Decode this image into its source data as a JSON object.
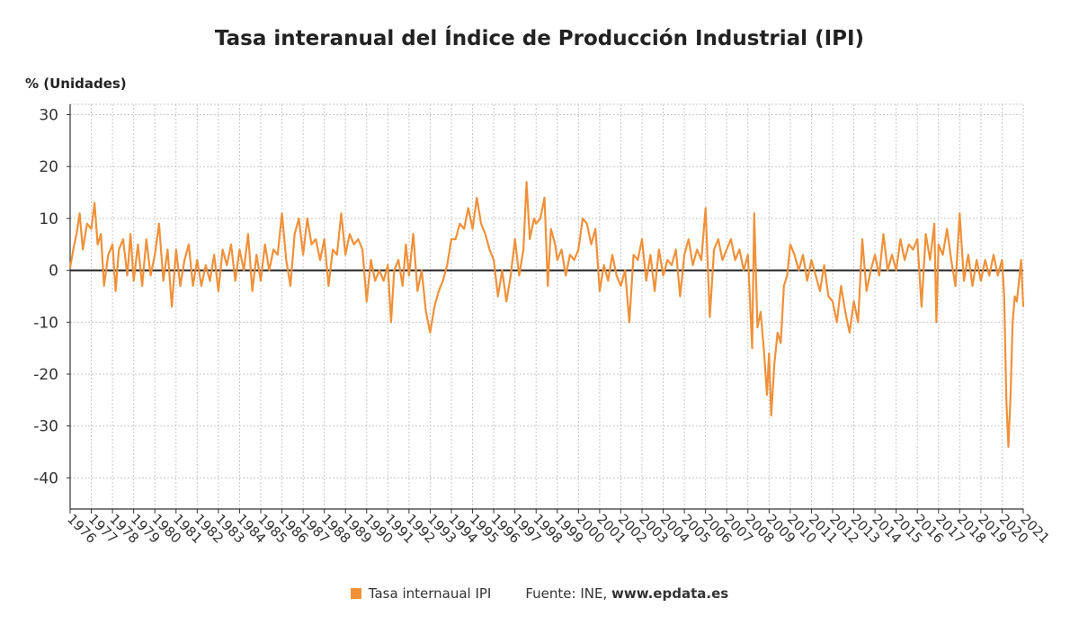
{
  "chart_data": {
    "type": "line",
    "title": "Tasa interanual del Índice de Producción Industrial (IPI)",
    "ylabel": "% (Unidades)",
    "xlabel": "",
    "ylim": [
      -46,
      32
    ],
    "yticks": [
      30,
      20,
      10,
      0,
      -10,
      -20,
      -30,
      -40
    ],
    "xticks": [
      "1976",
      "1977",
      "1978",
      "1979",
      "1980",
      "1981",
      "1982",
      "1983",
      "1984",
      "1985",
      "1986",
      "1987",
      "1988",
      "1989",
      "1990",
      "1991",
      "1992",
      "1993",
      "1994",
      "1995",
      "1996",
      "1997",
      "1998",
      "1999",
      "2000",
      "2001",
      "2002",
      "2003",
      "2004",
      "2005",
      "2006",
      "2007",
      "2008",
      "2009",
      "2010",
      "2011",
      "2012",
      "2013",
      "2014",
      "2015",
      "2016",
      "2017",
      "2018",
      "2019",
      "2020",
      "2021"
    ],
    "xlim": [
      1976.0,
      2021.0
    ],
    "grid": true,
    "legend_position": "bottom",
    "series": [
      {
        "name": "Tasa internaual IPI",
        "color": "#f0913a",
        "points": [
          [
            1976.0,
            0.5
          ],
          [
            1976.15,
            4
          ],
          [
            1976.3,
            7
          ],
          [
            1976.45,
            11
          ],
          [
            1976.6,
            4
          ],
          [
            1976.8,
            9
          ],
          [
            1977.0,
            8
          ],
          [
            1977.15,
            13
          ],
          [
            1977.3,
            5
          ],
          [
            1977.45,
            7
          ],
          [
            1977.6,
            -3
          ],
          [
            1977.8,
            3
          ],
          [
            1978.0,
            5
          ],
          [
            1978.15,
            -4
          ],
          [
            1978.3,
            4
          ],
          [
            1978.5,
            6
          ],
          [
            1978.7,
            -1
          ],
          [
            1978.85,
            7
          ],
          [
            1979.0,
            -2
          ],
          [
            1979.2,
            5
          ],
          [
            1979.4,
            -3
          ],
          [
            1979.6,
            6
          ],
          [
            1979.8,
            -1
          ],
          [
            1980.0,
            3
          ],
          [
            1980.2,
            9
          ],
          [
            1980.4,
            -2
          ],
          [
            1980.6,
            4
          ],
          [
            1980.8,
            -7
          ],
          [
            1981.0,
            4
          ],
          [
            1981.2,
            -3
          ],
          [
            1981.4,
            2
          ],
          [
            1981.6,
            5
          ],
          [
            1981.8,
            -3
          ],
          [
            1982.0,
            2
          ],
          [
            1982.2,
            -3
          ],
          [
            1982.4,
            1
          ],
          [
            1982.6,
            -2
          ],
          [
            1982.8,
            3
          ],
          [
            1983.0,
            -4
          ],
          [
            1983.2,
            4
          ],
          [
            1983.4,
            1
          ],
          [
            1983.6,
            5
          ],
          [
            1983.8,
            -2
          ],
          [
            1984.0,
            4
          ],
          [
            1984.2,
            0
          ],
          [
            1984.4,
            7
          ],
          [
            1984.6,
            -4
          ],
          [
            1984.8,
            3
          ],
          [
            1985.0,
            -2
          ],
          [
            1985.2,
            5
          ],
          [
            1985.4,
            0
          ],
          [
            1985.6,
            4
          ],
          [
            1985.8,
            3
          ],
          [
            1986.0,
            11
          ],
          [
            1986.2,
            2
          ],
          [
            1986.4,
            -3
          ],
          [
            1986.6,
            7
          ],
          [
            1986.8,
            10
          ],
          [
            1987.0,
            3
          ],
          [
            1987.2,
            10
          ],
          [
            1987.4,
            5
          ],
          [
            1987.6,
            6
          ],
          [
            1987.8,
            2
          ],
          [
            1988.0,
            6
          ],
          [
            1988.2,
            -3
          ],
          [
            1988.4,
            4
          ],
          [
            1988.6,
            3
          ],
          [
            1988.8,
            11
          ],
          [
            1989.0,
            3
          ],
          [
            1989.2,
            7
          ],
          [
            1989.4,
            5
          ],
          [
            1989.6,
            6
          ],
          [
            1989.8,
            4
          ],
          [
            1990.0,
            -6
          ],
          [
            1990.2,
            2
          ],
          [
            1990.4,
            -2
          ],
          [
            1990.6,
            0
          ],
          [
            1990.8,
            -2
          ],
          [
            1991.0,
            1
          ],
          [
            1991.15,
            -10
          ],
          [
            1991.3,
            0
          ],
          [
            1991.5,
            2
          ],
          [
            1991.7,
            -3
          ],
          [
            1991.85,
            5
          ],
          [
            1992.0,
            -1
          ],
          [
            1992.2,
            7
          ],
          [
            1992.4,
            -4
          ],
          [
            1992.6,
            0
          ],
          [
            1992.8,
            -8
          ],
          [
            1993.0,
            -12
          ],
          [
            1993.2,
            -7
          ],
          [
            1993.4,
            -4
          ],
          [
            1993.6,
            -2
          ],
          [
            1993.8,
            1
          ],
          [
            1994.0,
            6
          ],
          [
            1994.2,
            6
          ],
          [
            1994.4,
            9
          ],
          [
            1994.6,
            8
          ],
          [
            1994.8,
            12
          ],
          [
            1995.0,
            8
          ],
          [
            1995.2,
            14
          ],
          [
            1995.4,
            9
          ],
          [
            1995.6,
            7
          ],
          [
            1995.8,
            4
          ],
          [
            1996.0,
            2
          ],
          [
            1996.2,
            -5
          ],
          [
            1996.4,
            0
          ],
          [
            1996.6,
            -6
          ],
          [
            1996.8,
            -1
          ],
          [
            1997.0,
            6
          ],
          [
            1997.2,
            -1
          ],
          [
            1997.4,
            4
          ],
          [
            1997.55,
            17
          ],
          [
            1997.7,
            6
          ],
          [
            1997.9,
            10
          ],
          [
            1998.0,
            9
          ],
          [
            1998.2,
            10
          ],
          [
            1998.4,
            14
          ],
          [
            1998.55,
            -3
          ],
          [
            1998.7,
            8
          ],
          [
            1998.9,
            5
          ],
          [
            1999.0,
            2
          ],
          [
            1999.2,
            4
          ],
          [
            1999.4,
            -1
          ],
          [
            1999.6,
            3
          ],
          [
            1999.8,
            2
          ],
          [
            2000.0,
            4
          ],
          [
            2000.2,
            10
          ],
          [
            2000.4,
            9
          ],
          [
            2000.6,
            5
          ],
          [
            2000.8,
            8
          ],
          [
            2001.0,
            -4
          ],
          [
            2001.2,
            1
          ],
          [
            2001.4,
            -2
          ],
          [
            2001.6,
            3
          ],
          [
            2001.8,
            -1
          ],
          [
            2002.0,
            -3
          ],
          [
            2002.2,
            0
          ],
          [
            2002.4,
            -10
          ],
          [
            2002.6,
            3
          ],
          [
            2002.8,
            2
          ],
          [
            2003.0,
            6
          ],
          [
            2003.2,
            -2
          ],
          [
            2003.4,
            3
          ],
          [
            2003.6,
            -4
          ],
          [
            2003.8,
            4
          ],
          [
            2004.0,
            -1
          ],
          [
            2004.2,
            2
          ],
          [
            2004.4,
            1
          ],
          [
            2004.6,
            4
          ],
          [
            2004.8,
            -5
          ],
          [
            2005.0,
            3
          ],
          [
            2005.2,
            6
          ],
          [
            2005.4,
            1
          ],
          [
            2005.6,
            4
          ],
          [
            2005.8,
            2
          ],
          [
            2006.0,
            12
          ],
          [
            2006.2,
            -9
          ],
          [
            2006.4,
            4
          ],
          [
            2006.6,
            6
          ],
          [
            2006.8,
            2
          ],
          [
            2007.0,
            4
          ],
          [
            2007.2,
            6
          ],
          [
            2007.4,
            2
          ],
          [
            2007.6,
            4
          ],
          [
            2007.8,
            0
          ],
          [
            2008.0,
            3
          ],
          [
            2008.2,
            -15
          ],
          [
            2008.3,
            11
          ],
          [
            2008.45,
            -11
          ],
          [
            2008.6,
            -8
          ],
          [
            2008.75,
            -15
          ],
          [
            2008.9,
            -24
          ],
          [
            2009.0,
            -16
          ],
          [
            2009.1,
            -28
          ],
          [
            2009.25,
            -18
          ],
          [
            2009.4,
            -12
          ],
          [
            2009.55,
            -14
          ],
          [
            2009.7,
            -3
          ],
          [
            2009.85,
            -1
          ],
          [
            2010.0,
            5
          ],
          [
            2010.2,
            3
          ],
          [
            2010.4,
            0
          ],
          [
            2010.6,
            3
          ],
          [
            2010.8,
            -2
          ],
          [
            2011.0,
            2
          ],
          [
            2011.2,
            -1
          ],
          [
            2011.4,
            -4
          ],
          [
            2011.6,
            1
          ],
          [
            2011.8,
            -5
          ],
          [
            2012.0,
            -6
          ],
          [
            2012.2,
            -10
          ],
          [
            2012.4,
            -3
          ],
          [
            2012.6,
            -8
          ],
          [
            2012.8,
            -12
          ],
          [
            2013.0,
            -6
          ],
          [
            2013.2,
            -10
          ],
          [
            2013.4,
            6
          ],
          [
            2013.6,
            -4
          ],
          [
            2013.8,
            0
          ],
          [
            2014.0,
            3
          ],
          [
            2014.2,
            -1
          ],
          [
            2014.4,
            7
          ],
          [
            2014.6,
            0
          ],
          [
            2014.8,
            3
          ],
          [
            2015.0,
            0
          ],
          [
            2015.2,
            6
          ],
          [
            2015.4,
            2
          ],
          [
            2015.6,
            5
          ],
          [
            2015.8,
            4
          ],
          [
            2016.0,
            6
          ],
          [
            2016.2,
            -7
          ],
          [
            2016.4,
            7
          ],
          [
            2016.6,
            2
          ],
          [
            2016.8,
            9
          ],
          [
            2016.9,
            -10
          ],
          [
            2017.0,
            5
          ],
          [
            2017.2,
            3
          ],
          [
            2017.4,
            8
          ],
          [
            2017.6,
            2
          ],
          [
            2017.8,
            -3
          ],
          [
            2018.0,
            11
          ],
          [
            2018.2,
            -2
          ],
          [
            2018.4,
            3
          ],
          [
            2018.6,
            -3
          ],
          [
            2018.8,
            2
          ],
          [
            2019.0,
            -2
          ],
          [
            2019.2,
            2
          ],
          [
            2019.4,
            -1
          ],
          [
            2019.6,
            3
          ],
          [
            2019.8,
            -1
          ],
          [
            2020.0,
            2
          ],
          [
            2020.1,
            -5
          ],
          [
            2020.2,
            -25
          ],
          [
            2020.3,
            -34
          ],
          [
            2020.4,
            -24
          ],
          [
            2020.5,
            -10
          ],
          [
            2020.6,
            -5
          ],
          [
            2020.7,
            -6
          ],
          [
            2020.8,
            -2
          ],
          [
            2020.9,
            2
          ],
          [
            2021.0,
            -7
          ]
        ]
      }
    ],
    "zero_line": true
  },
  "legend": {
    "series_label": "Tasa internaual IPI",
    "source_prefix": "Fuente: INE, ",
    "source_site": "www.epdata.es"
  }
}
